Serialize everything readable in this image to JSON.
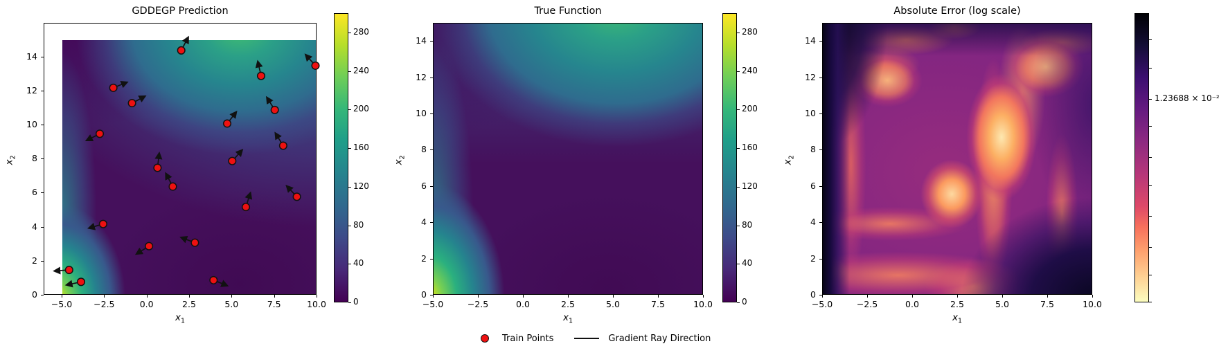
{
  "figure": {
    "background": "#ffffff",
    "legend": {
      "items": [
        {
          "label": "Train Points",
          "marker": "red-dot",
          "marker_color": "#ee1111"
        },
        {
          "label": "Gradient Ray Direction",
          "marker": "black-line",
          "marker_color": "#111111"
        }
      ]
    }
  },
  "chart_data": [
    {
      "type": "heatmap",
      "subtype": "filled-contour",
      "title": "GDDEGP Prediction",
      "xlabel": {
        "base": "x",
        "sub": "1"
      },
      "ylabel": {
        "base": "x",
        "sub": "2"
      },
      "xlim": [
        -5,
        10
      ],
      "ylim": [
        0,
        15
      ],
      "xtick_values": [
        -5,
        -2.5,
        0,
        2.5,
        5,
        7.5,
        10
      ],
      "xtick_labels": [
        "−5.0",
        "−2.5",
        "0.0",
        "2.5",
        "5.0",
        "7.5",
        "10.0"
      ],
      "ytick_values": [
        0,
        2,
        4,
        6,
        8,
        10,
        12,
        14
      ],
      "ytick_labels": [
        "0",
        "2",
        "4",
        "6",
        "8",
        "10",
        "12",
        "14"
      ],
      "colormap": "viridis",
      "colorbar": {
        "vmin": 0,
        "vmax": 300,
        "tick_values": [
          0,
          40,
          80,
          120,
          160,
          200,
          240,
          280
        ],
        "tick_labels": [
          "0",
          "40",
          "80",
          "120",
          "160",
          "200",
          "240",
          "280"
        ]
      },
      "grid": false,
      "value_hotspots": "high values (~300) at bottom-left corner near (-5,0); secondary high ridge (~200) along top around x=5..7; low (~0..40) purple basin over most of the domain",
      "train_points": [
        {
          "x": 2.0,
          "y": 14.4,
          "arrow_deg": 62
        },
        {
          "x": 9.9,
          "y": 13.5,
          "arrow_deg": 132
        },
        {
          "x": 6.7,
          "y": 12.9,
          "arrow_deg": 103
        },
        {
          "x": -2.0,
          "y": 12.2,
          "arrow_deg": 22
        },
        {
          "x": -0.9,
          "y": 11.3,
          "arrow_deg": 28
        },
        {
          "x": 7.5,
          "y": 10.9,
          "arrow_deg": 122
        },
        {
          "x": 4.7,
          "y": 10.1,
          "arrow_deg": 52
        },
        {
          "x": -2.8,
          "y": 9.5,
          "arrow_deg": 207
        },
        {
          "x": 8.0,
          "y": 8.8,
          "arrow_deg": 122
        },
        {
          "x": 5.0,
          "y": 7.9,
          "arrow_deg": 48
        },
        {
          "x": 0.6,
          "y": 7.5,
          "arrow_deg": 83
        },
        {
          "x": 1.5,
          "y": 6.4,
          "arrow_deg": 118
        },
        {
          "x": 8.8,
          "y": 5.8,
          "arrow_deg": 133
        },
        {
          "x": 5.8,
          "y": 5.2,
          "arrow_deg": 72
        },
        {
          "x": -2.6,
          "y": 4.2,
          "arrow_deg": 196
        },
        {
          "x": 0.1,
          "y": 2.9,
          "arrow_deg": 212
        },
        {
          "x": 2.8,
          "y": 3.1,
          "arrow_deg": 159
        },
        {
          "x": -4.6,
          "y": 1.5,
          "arrow_deg": 184
        },
        {
          "x": -3.9,
          "y": 0.8,
          "arrow_deg": 192
        },
        {
          "x": 3.9,
          "y": 0.9,
          "arrow_deg": 338
        }
      ],
      "point_style": {
        "fill": "#ee1111",
        "edge": "#111111"
      }
    },
    {
      "type": "heatmap",
      "subtype": "filled-contour",
      "title": "True Function",
      "xlabel": {
        "base": "x",
        "sub": "1"
      },
      "ylabel": {
        "base": "x",
        "sub": "2"
      },
      "xlim": [
        -5,
        10
      ],
      "ylim": [
        0,
        15
      ],
      "xtick_values": [
        -5,
        -2.5,
        0,
        2.5,
        5,
        7.5,
        10
      ],
      "xtick_labels": [
        "−5.0",
        "−2.5",
        "0.0",
        "2.5",
        "5.0",
        "7.5",
        "10.0"
      ],
      "ytick_values": [
        0,
        2,
        4,
        6,
        8,
        10,
        12,
        14
      ],
      "ytick_labels": [
        "0",
        "2",
        "4",
        "6",
        "8",
        "10",
        "12",
        "14"
      ],
      "colormap": "viridis",
      "colorbar": {
        "vmin": 0,
        "vmax": 300,
        "tick_values": [
          0,
          40,
          80,
          120,
          160,
          200,
          240,
          280
        ],
        "tick_labels": [
          "0",
          "40",
          "80",
          "120",
          "160",
          "200",
          "240",
          "280"
        ]
      },
      "grid": false,
      "value_hotspots": "high values (~300) at bottom-left corner near (-5,0); green ridge (~200) at top around x=6; low purple basin elsewhere"
    },
    {
      "type": "heatmap",
      "subtype": "image",
      "title": "Absolute Error (log scale)",
      "xlabel": {
        "base": "x",
        "sub": "1"
      },
      "ylabel": {
        "base": "x",
        "sub": "2"
      },
      "xlim": [
        -5,
        10
      ],
      "ylim": [
        0,
        15
      ],
      "xtick_values": [
        -5,
        -2.5,
        0,
        2.5,
        5,
        7.5,
        10
      ],
      "xtick_labels": [
        "−5.0",
        "−2.5",
        "0.0",
        "2.5",
        "5.0",
        "7.5",
        "10.0"
      ],
      "ytick_values": [
        0,
        2,
        4,
        6,
        8,
        10,
        12,
        14
      ],
      "ytick_labels": [
        "0",
        "2",
        "4",
        "6",
        "8",
        "10",
        "12",
        "14"
      ],
      "colormap": "magma_r",
      "scale": "log",
      "colorbar": {
        "ticks": [
          {
            "frac": 0.091
          },
          {
            "frac": 0.189
          },
          {
            "frac": 0.297,
            "label": "1.23688 × 10⁻²"
          },
          {
            "frac": 0.39
          },
          {
            "frac": 0.498
          },
          {
            "frac": 0.596
          },
          {
            "frac": 0.701
          },
          {
            "frac": 0.809
          },
          {
            "frac": 0.904
          },
          {
            "frac": 0.998
          }
        ]
      },
      "grid": false,
      "value_hotspots": "highest error (black) along left edge x=-5, top-left corner and bottom-right corner near (9,0); bright low-error orange ridge network across the interior with brightest spots near (5,8.8), (2.4,5.6), (-1.3,11.7), (7.3,12.4)"
    }
  ]
}
